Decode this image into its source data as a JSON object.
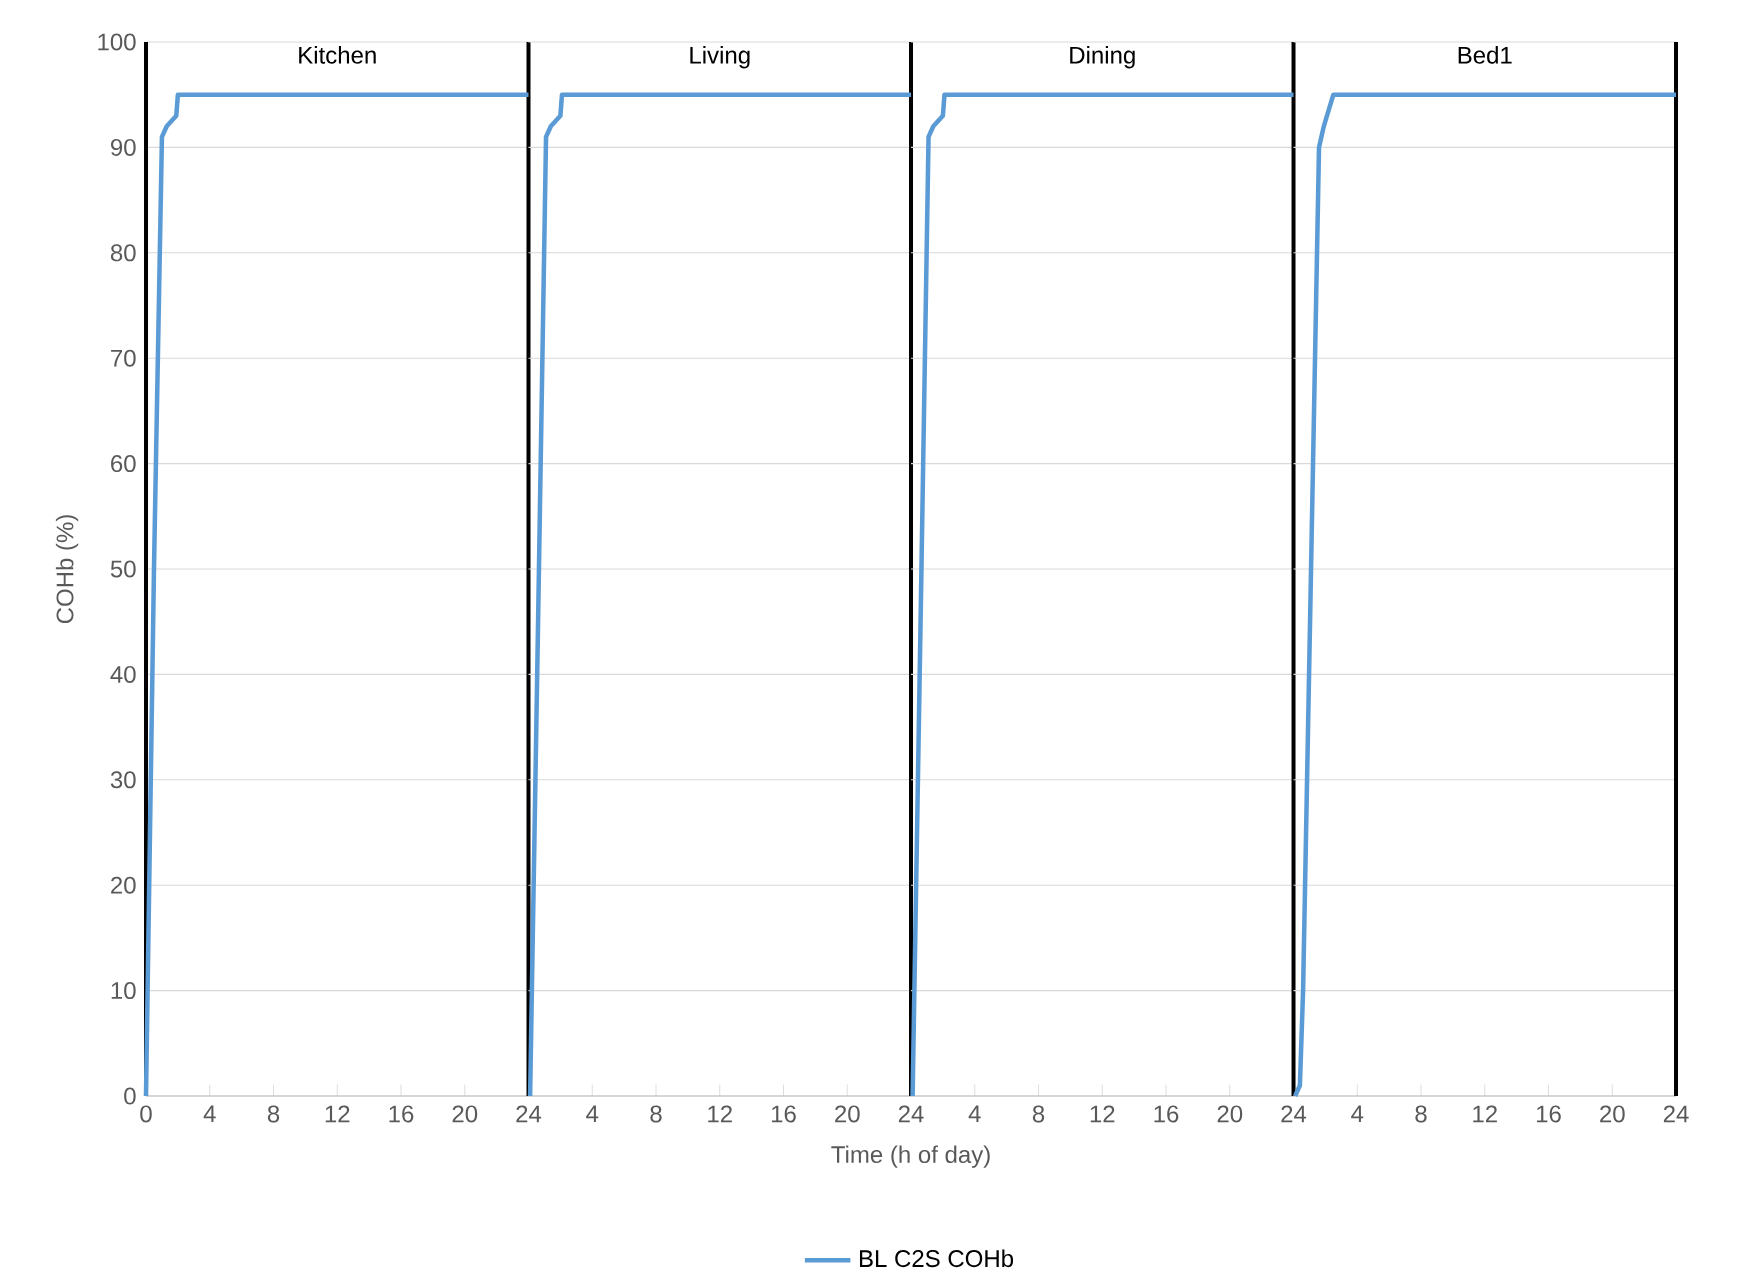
{
  "chart_data": [
    {
      "type": "line",
      "title": "Kitchen",
      "ylabel": "COHb (%)",
      "xlim": [
        0,
        24
      ],
      "ylim": [
        0,
        100
      ],
      "xticks": [
        0,
        4,
        8,
        12,
        16,
        20,
        24
      ],
      "yticks": [
        0,
        10,
        20,
        30,
        40,
        50,
        60,
        70,
        80,
        90,
        100
      ],
      "grid": "y",
      "series": [
        {
          "color": "#5b9bd5",
          "x": [
            0,
            0.5,
            1.0,
            1.3,
            1.9,
            2.0,
            24
          ],
          "values": [
            0,
            50,
            91,
            92,
            93,
            95,
            95
          ]
        }
      ],
      "ref_lines": [
        {
          "axis": "x",
          "value": 24,
          "color": "#000000"
        }
      ]
    },
    {
      "type": "line",
      "title": "Living",
      "xlabel": "Time (h of day)",
      "xlim": [
        0,
        24
      ],
      "ylim": [
        0,
        100
      ],
      "xticks": [
        4,
        8,
        12,
        16,
        20,
        24
      ],
      "yticks": [
        0,
        10,
        20,
        30,
        40,
        50,
        60,
        70,
        80,
        90,
        100
      ],
      "grid": "y",
      "legend": "bottom",
      "tick_labels": "x",
      "series": [
        {
          "name": "BL C2S COHb",
          "color": "#5b9bd5",
          "x": [
            0.1,
            0.6,
            1.1,
            1.4,
            2.0,
            2.1,
            24
          ],
          "values": [
            0,
            45,
            91,
            92,
            93,
            95,
            95
          ]
        }
      ],
      "ref_lines": [
        {
          "axis": "x",
          "value": 24,
          "color": "#000000"
        }
      ]
    },
    {
      "type": "line",
      "title": "Dining",
      "xlim": [
        0,
        24
      ],
      "ylim": [
        0,
        100
      ],
      "xticks": [
        4,
        8,
        12,
        16,
        20,
        24
      ],
      "yticks": [
        0,
        10,
        20,
        30,
        40,
        50,
        60,
        70,
        80,
        90,
        100
      ],
      "grid": "y",
      "tick_labels": "x",
      "series": [
        {
          "color": "#5b9bd5",
          "x": [
            0.1,
            0.6,
            1.1,
            1.4,
            2.0,
            2.1,
            24
          ],
          "values": [
            0,
            45,
            91,
            92,
            93,
            95,
            95
          ]
        }
      ],
      "ref_lines": [
        {
          "axis": "x",
          "value": 24,
          "color": "#000000"
        }
      ]
    },
    {
      "type": "line",
      "title": "Bed1",
      "xlim": [
        0,
        24
      ],
      "ylim": [
        0,
        100
      ],
      "xticks": [
        4,
        8,
        12,
        16,
        20,
        24
      ],
      "yticks": [
        0,
        10,
        20,
        30,
        40,
        50,
        60,
        70,
        80,
        90,
        100
      ],
      "grid": "y",
      "tick_labels": "x",
      "series": [
        {
          "color": "#5b9bd5",
          "x": [
            0.1,
            0.4,
            0.6,
            1.1,
            1.6,
            1.9,
            2.1,
            2.5,
            24
          ],
          "values": [
            0,
            1,
            10,
            50,
            90,
            92,
            93,
            95,
            95
          ]
        }
      ],
      "ref_lines": [
        {
          "axis": "x",
          "value": 24,
          "color": "#000000"
        }
      ]
    }
  ]
}
